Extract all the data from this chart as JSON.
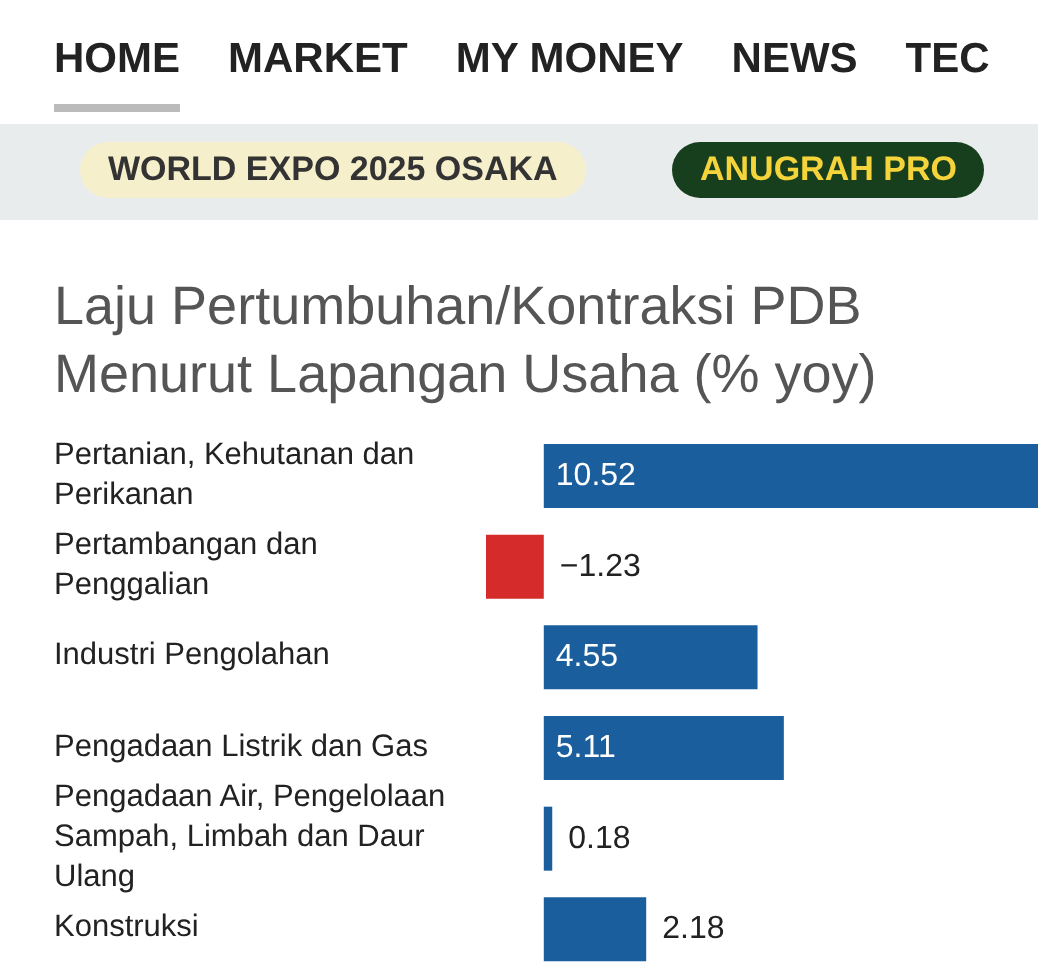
{
  "chart_data": {
    "type": "bar",
    "orientation": "horizontal",
    "title": "Laju Pertumbuhan/Kontraksi PDB Menurut Lapangan Usaha (% yoy)",
    "annotations": [
      "HOME",
      "MARKET",
      "MY MONEY",
      "NEWS",
      "TEC",
      "WORLD EXPO 2025 OSAKA",
      "ANUGRAH PRO"
    ],
    "categories": [
      "Pertanian, Kehutanan dan Perikanan",
      "Pertambangan dan Penggalian",
      "Industri Pengolahan",
      "Pengadaan Listrik dan Gas",
      "Pengadaan Air, Pengelolaan Sampah, Limbah dan Daur Ulang",
      "Konstruksi"
    ],
    "values": [
      10.52,
      -1.23,
      4.55,
      5.11,
      0.18,
      2.18
    ],
    "colors": [
      "#1b5e9e",
      "#d62b2b",
      "#1b5e9e",
      "#1b5e9e",
      "#1b5e9e",
      "#1b5e9e"
    ],
    "value_labels": [
      "10.52",
      "−1.23",
      "4.55",
      "5.11",
      "0.18",
      "2.18"
    ],
    "tick_labels": "y"
  }
}
